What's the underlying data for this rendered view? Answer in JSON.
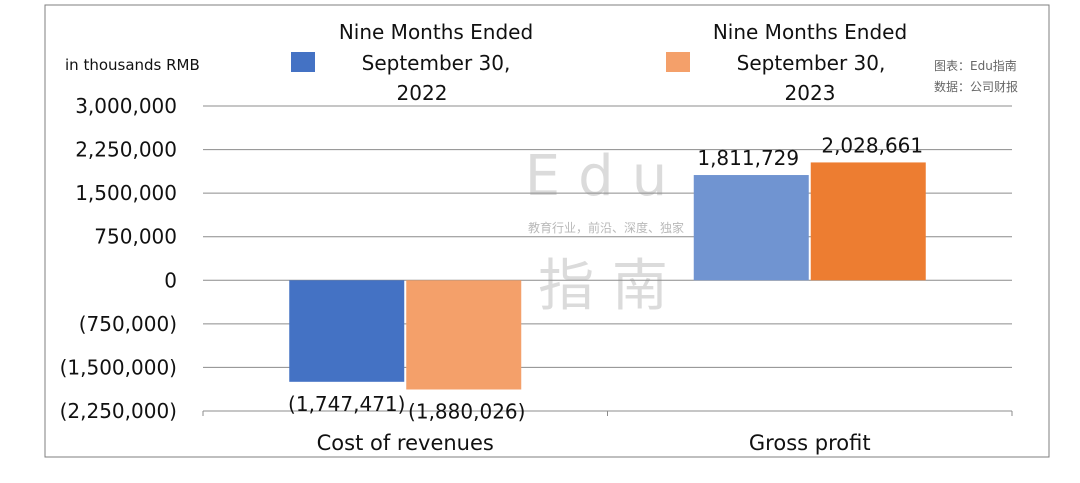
{
  "unit_label": "in thousands RMB",
  "source": {
    "line1": "图表：Edu指南",
    "line2": "数据：公司财报"
  },
  "watermark": {
    "brand": "Edu",
    "tagline": "教育行业，前沿、深度、独家",
    "cn": "指 南"
  },
  "colors": {
    "s1_cost": "#4472c4",
    "s2_cost": "#f4a06a",
    "s1_gross": "#7094d1",
    "s2_gross": "#ed7d31"
  },
  "chart_data": {
    "type": "bar",
    "categories": [
      "Cost of revenues",
      "Gross profit"
    ],
    "series": [
      {
        "name": "Nine Months Ended September 30, 2022",
        "legend_lines": [
          "Nine Months Ended",
          "September 30,",
          "2022"
        ],
        "values": [
          -1747471,
          1811729
        ],
        "labels": [
          "(1,747,471)",
          "1,811,729"
        ]
      },
      {
        "name": "Nine Months Ended September 30, 2023",
        "legend_lines": [
          "Nine Months Ended",
          "September 30,",
          "2023"
        ],
        "values": [
          -1880026,
          2028661
        ],
        "labels": [
          "(1,880,026)",
          "2,028,661"
        ]
      }
    ],
    "ylim": [
      -2250000,
      3000000
    ],
    "yticks": [
      3000000,
      2250000,
      1500000,
      750000,
      0,
      -750000,
      -1500000,
      -2250000
    ],
    "ytick_labels": [
      "3,000,000",
      "2,250,000",
      "1,500,000",
      "750,000",
      "0",
      "(750,000)",
      "(1,500,000)",
      "(2,250,000)"
    ],
    "grid": true,
    "legend": "top"
  }
}
